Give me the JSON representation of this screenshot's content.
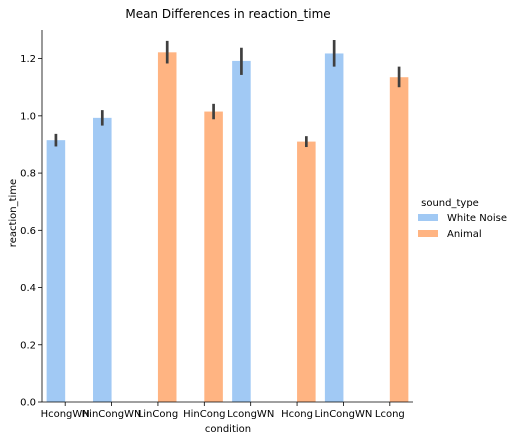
{
  "chart_data": {
    "type": "bar",
    "title": "Mean Differences in reaction_time",
    "xlabel": "condition",
    "ylabel": "reaction_time",
    "ylim": [
      0,
      1.3
    ],
    "yticks": [
      0.0,
      0.2,
      0.4,
      0.6,
      0.8,
      1.0,
      1.2
    ],
    "yticklabels": [
      "0.0",
      "0.2",
      "0.4",
      "0.6",
      "0.8",
      "1.0",
      "1.2"
    ],
    "grid": false,
    "legend": {
      "title": "sound_type",
      "placement": "right"
    },
    "categories": [
      "HcongWN",
      "HinCongWN",
      "LinCong",
      "HinCong",
      "LcongWN",
      "Hcong",
      "LinCongWN",
      "Lcong"
    ],
    "series": [
      {
        "name": "White Noise",
        "color": "#a1c9f4",
        "values": [
          0.915,
          0.993,
          null,
          null,
          1.192,
          null,
          1.218,
          null
        ],
        "ci_low": [
          0.893,
          0.966,
          null,
          null,
          1.143,
          null,
          1.172,
          null
        ],
        "ci_high": [
          0.937,
          1.02,
          null,
          null,
          1.238,
          null,
          1.265,
          null
        ]
      },
      {
        "name": "Animal",
        "color": "#ffb482",
        "values": [
          null,
          null,
          1.222,
          1.015,
          null,
          0.91,
          null,
          1.135
        ],
        "ci_low": [
          null,
          null,
          1.183,
          0.988,
          null,
          0.891,
          null,
          1.1
        ],
        "ci_high": [
          null,
          null,
          1.262,
          1.042,
          null,
          0.929,
          null,
          1.172
        ]
      }
    ]
  }
}
